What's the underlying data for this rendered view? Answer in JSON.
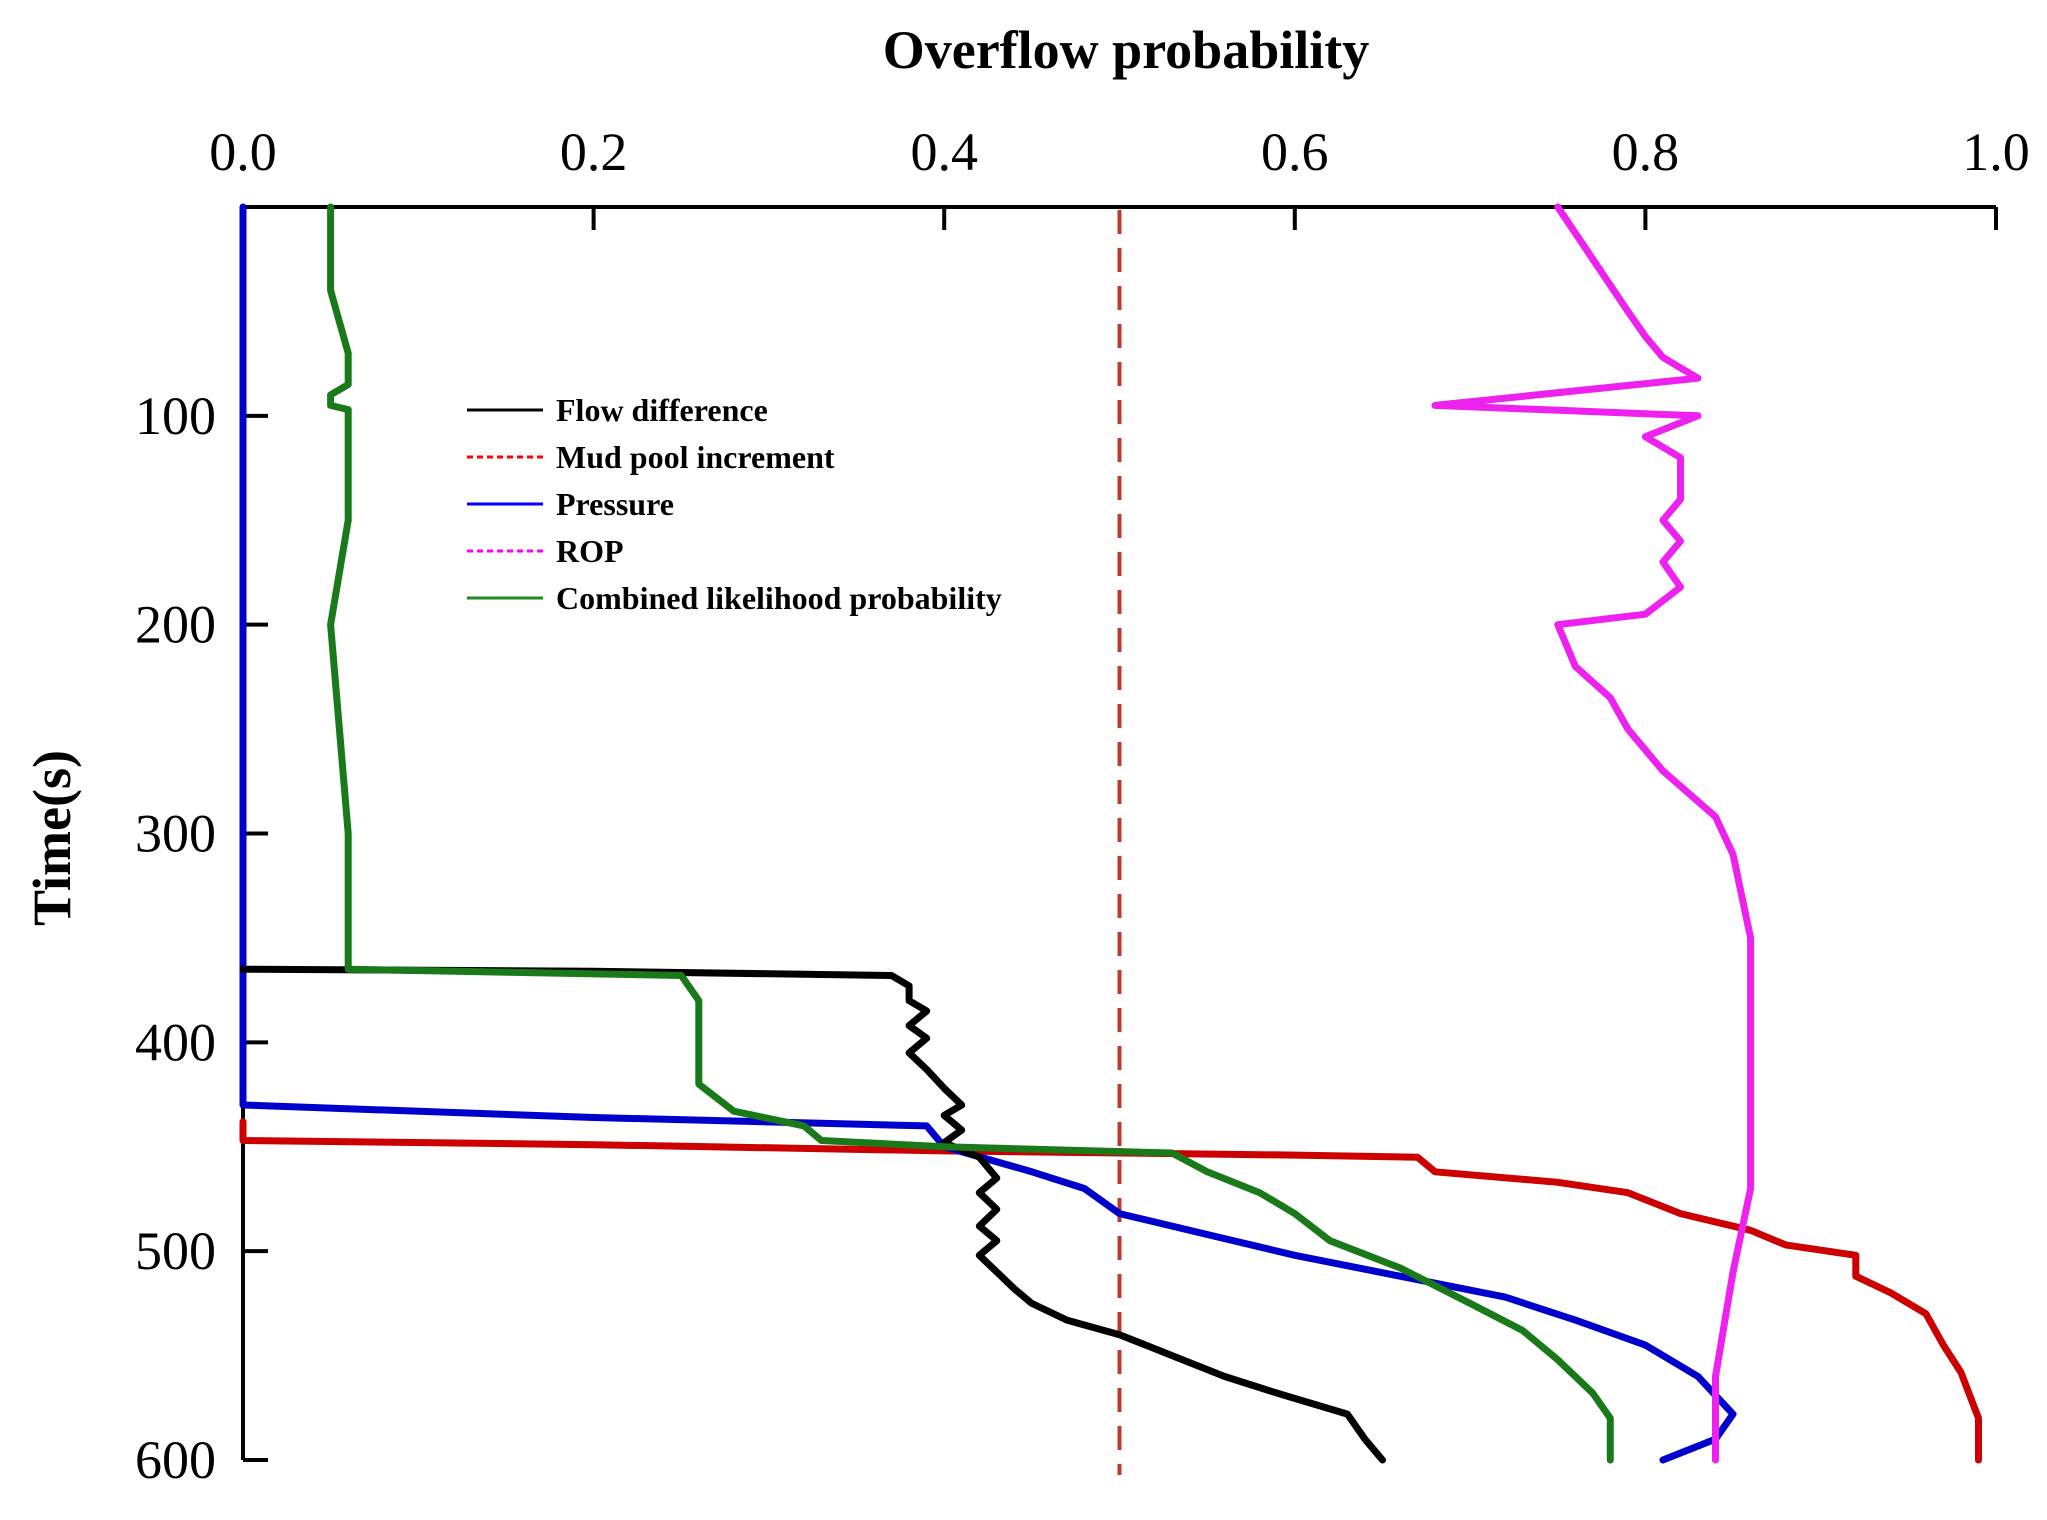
{
  "chart_data": {
    "type": "line",
    "title": "",
    "xlabel": "Overflow probability",
    "ylabel": "Time(s)",
    "xlim": [
      0.0,
      1.0
    ],
    "ylim": [
      0,
      600
    ],
    "x_axis_position": "top",
    "y_axis_inverted": true,
    "x_ticks": [
      "0.0",
      "0.2",
      "0.4",
      "0.6",
      "0.8",
      "1.0"
    ],
    "y_ticks": [
      "100",
      "200",
      "300",
      "400",
      "500",
      "600"
    ],
    "grid": false,
    "legend_position": "upper-left",
    "threshold": {
      "x": 0.5,
      "color": "#c0392b",
      "style": "dashed"
    },
    "series": [
      {
        "name": "Flow difference",
        "legend_color": "#000000",
        "color": "#000000",
        "points": [
          [
            0.0,
            365
          ],
          [
            0.2,
            366
          ],
          [
            0.37,
            368
          ],
          [
            0.38,
            373
          ],
          [
            0.38,
            380
          ],
          [
            0.39,
            385
          ],
          [
            0.38,
            392
          ],
          [
            0.39,
            398
          ],
          [
            0.38,
            405
          ],
          [
            0.39,
            413
          ],
          [
            0.4,
            422
          ],
          [
            0.41,
            430
          ],
          [
            0.4,
            435
          ],
          [
            0.41,
            442
          ],
          [
            0.4,
            448
          ],
          [
            0.42,
            455
          ],
          [
            0.43,
            465
          ],
          [
            0.42,
            472
          ],
          [
            0.43,
            480
          ],
          [
            0.42,
            488
          ],
          [
            0.43,
            495
          ],
          [
            0.42,
            502
          ],
          [
            0.43,
            510
          ],
          [
            0.44,
            518
          ],
          [
            0.45,
            525
          ],
          [
            0.47,
            533
          ],
          [
            0.5,
            540
          ],
          [
            0.53,
            550
          ],
          [
            0.56,
            560
          ],
          [
            0.59,
            568
          ],
          [
            0.63,
            578
          ],
          [
            0.64,
            590
          ],
          [
            0.65,
            600
          ]
        ]
      },
      {
        "name": "Mud pool increment",
        "legend_color": "#ff0000",
        "color": "#cc0000",
        "points": [
          [
            0.0,
            438
          ],
          [
            0.0,
            447
          ],
          [
            0.2,
            449
          ],
          [
            0.4,
            452
          ],
          [
            0.6,
            454
          ],
          [
            0.67,
            455
          ],
          [
            0.68,
            462
          ],
          [
            0.75,
            467
          ],
          [
            0.79,
            472
          ],
          [
            0.82,
            482
          ],
          [
            0.86,
            490
          ],
          [
            0.88,
            497
          ],
          [
            0.92,
            502
          ],
          [
            0.92,
            512
          ],
          [
            0.94,
            520
          ],
          [
            0.96,
            530
          ],
          [
            0.97,
            545
          ],
          [
            0.98,
            558
          ],
          [
            0.99,
            580
          ],
          [
            0.99,
            600
          ]
        ]
      },
      {
        "name": "Pressure",
        "legend_color": "#0000ff",
        "color": "#0000cc",
        "points": [
          [
            0.0,
            0
          ],
          [
            0.0,
            430
          ],
          [
            0.2,
            436
          ],
          [
            0.39,
            440
          ],
          [
            0.4,
            450
          ],
          [
            0.45,
            462
          ],
          [
            0.48,
            470
          ],
          [
            0.5,
            482
          ],
          [
            0.55,
            492
          ],
          [
            0.6,
            502
          ],
          [
            0.66,
            512
          ],
          [
            0.72,
            522
          ],
          [
            0.76,
            533
          ],
          [
            0.8,
            545
          ],
          [
            0.83,
            560
          ],
          [
            0.85,
            578
          ],
          [
            0.84,
            590
          ],
          [
            0.81,
            600
          ]
        ]
      },
      {
        "name": "ROP",
        "legend_color": "#ff00ff",
        "color": "#ee22ee",
        "points": [
          [
            0.75,
            0
          ],
          [
            0.77,
            25
          ],
          [
            0.79,
            50
          ],
          [
            0.8,
            62
          ],
          [
            0.81,
            72
          ],
          [
            0.83,
            82
          ],
          [
            0.68,
            95
          ],
          [
            0.83,
            100
          ],
          [
            0.8,
            110
          ],
          [
            0.82,
            120
          ],
          [
            0.82,
            140
          ],
          [
            0.81,
            150
          ],
          [
            0.82,
            160
          ],
          [
            0.81,
            170
          ],
          [
            0.82,
            182
          ],
          [
            0.8,
            195
          ],
          [
            0.75,
            200
          ],
          [
            0.76,
            220
          ],
          [
            0.78,
            235
          ],
          [
            0.79,
            250
          ],
          [
            0.81,
            270
          ],
          [
            0.84,
            292
          ],
          [
            0.85,
            310
          ],
          [
            0.86,
            350
          ],
          [
            0.86,
            420
          ],
          [
            0.86,
            470
          ],
          [
            0.85,
            510
          ],
          [
            0.84,
            560
          ],
          [
            0.84,
            600
          ]
        ]
      },
      {
        "name": "Combined likelihood probability",
        "legend_color": "#228b22",
        "color": "#1a7a1a",
        "points": [
          [
            0.05,
            0
          ],
          [
            0.05,
            40
          ],
          [
            0.06,
            70
          ],
          [
            0.06,
            85
          ],
          [
            0.05,
            90
          ],
          [
            0.05,
            95
          ],
          [
            0.06,
            97
          ],
          [
            0.06,
            150
          ],
          [
            0.05,
            200
          ],
          [
            0.06,
            300
          ],
          [
            0.06,
            365
          ],
          [
            0.25,
            368
          ],
          [
            0.26,
            380
          ],
          [
            0.26,
            420
          ],
          [
            0.28,
            433
          ],
          [
            0.32,
            440
          ],
          [
            0.33,
            447
          ],
          [
            0.4,
            450
          ],
          [
            0.53,
            453
          ],
          [
            0.55,
            462
          ],
          [
            0.58,
            472
          ],
          [
            0.6,
            482
          ],
          [
            0.62,
            495
          ],
          [
            0.66,
            508
          ],
          [
            0.7,
            525
          ],
          [
            0.73,
            538
          ],
          [
            0.75,
            552
          ],
          [
            0.77,
            568
          ],
          [
            0.78,
            580
          ],
          [
            0.78,
            600
          ]
        ]
      }
    ]
  }
}
